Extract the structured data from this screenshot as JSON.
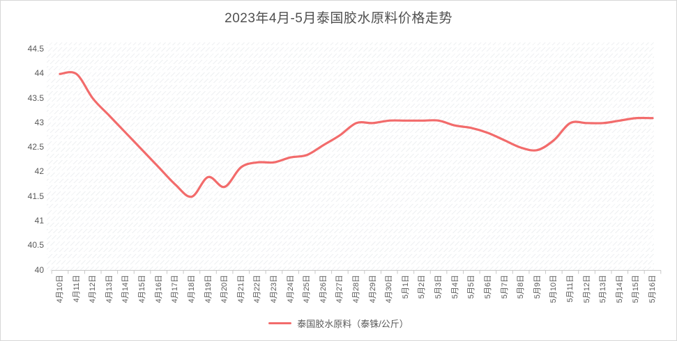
{
  "panel": {
    "title": "2023年4月-5月泰国胶水原料价格走势"
  },
  "legend": {
    "label": "泰国胶水原料（泰铢/公斤）"
  },
  "colors": {
    "line": "#f26b6b",
    "axis": "#c6c6c6",
    "text": "#595959"
  },
  "chart_data": {
    "type": "line",
    "title": "2023年4月-5月泰国胶水原料价格走势",
    "xlabel": "",
    "ylabel": "",
    "ylim": [
      40,
      44.5
    ],
    "ytick_step": 0.5,
    "yticks": [
      "44.5",
      "44",
      "43.5",
      "43",
      "42.5",
      "42",
      "41.5",
      "41",
      "40.5",
      "40"
    ],
    "grid": false,
    "legend_position": "bottom",
    "x_label_rotation": -90,
    "categories": [
      "4月10日",
      "4月11日",
      "4月12日",
      "4月13日",
      "4月14日",
      "4月15日",
      "4月16日",
      "4月17日",
      "4月18日",
      "4月19日",
      "4月20日",
      "4月21日",
      "4月22日",
      "4月23日",
      "4月24日",
      "4月25日",
      "4月26日",
      "4月27日",
      "4月28日",
      "4月29日",
      "4月30日",
      "5月1日",
      "5月2日",
      "5月3日",
      "5月4日",
      "5月5日",
      "5月6日",
      "5月7日",
      "5月8日",
      "5月9日",
      "5月10日",
      "5月11日",
      "5月12日",
      "5月13日",
      "5月14日",
      "5月15日",
      "5月16日"
    ],
    "series": [
      {
        "name": "泰国胶水原料（泰铢/公斤）",
        "color": "#f26b6b",
        "values": [
          44.0,
          44.0,
          43.5,
          43.15,
          42.8,
          42.45,
          42.1,
          41.75,
          41.5,
          41.9,
          41.7,
          42.1,
          42.2,
          42.2,
          42.3,
          42.35,
          42.55,
          42.75,
          43.0,
          43.0,
          43.05,
          43.05,
          43.05,
          43.05,
          42.95,
          42.9,
          42.8,
          42.65,
          42.5,
          42.45,
          42.65,
          43.0,
          43.0,
          43.0,
          43.05,
          43.1,
          43.1
        ]
      }
    ]
  }
}
